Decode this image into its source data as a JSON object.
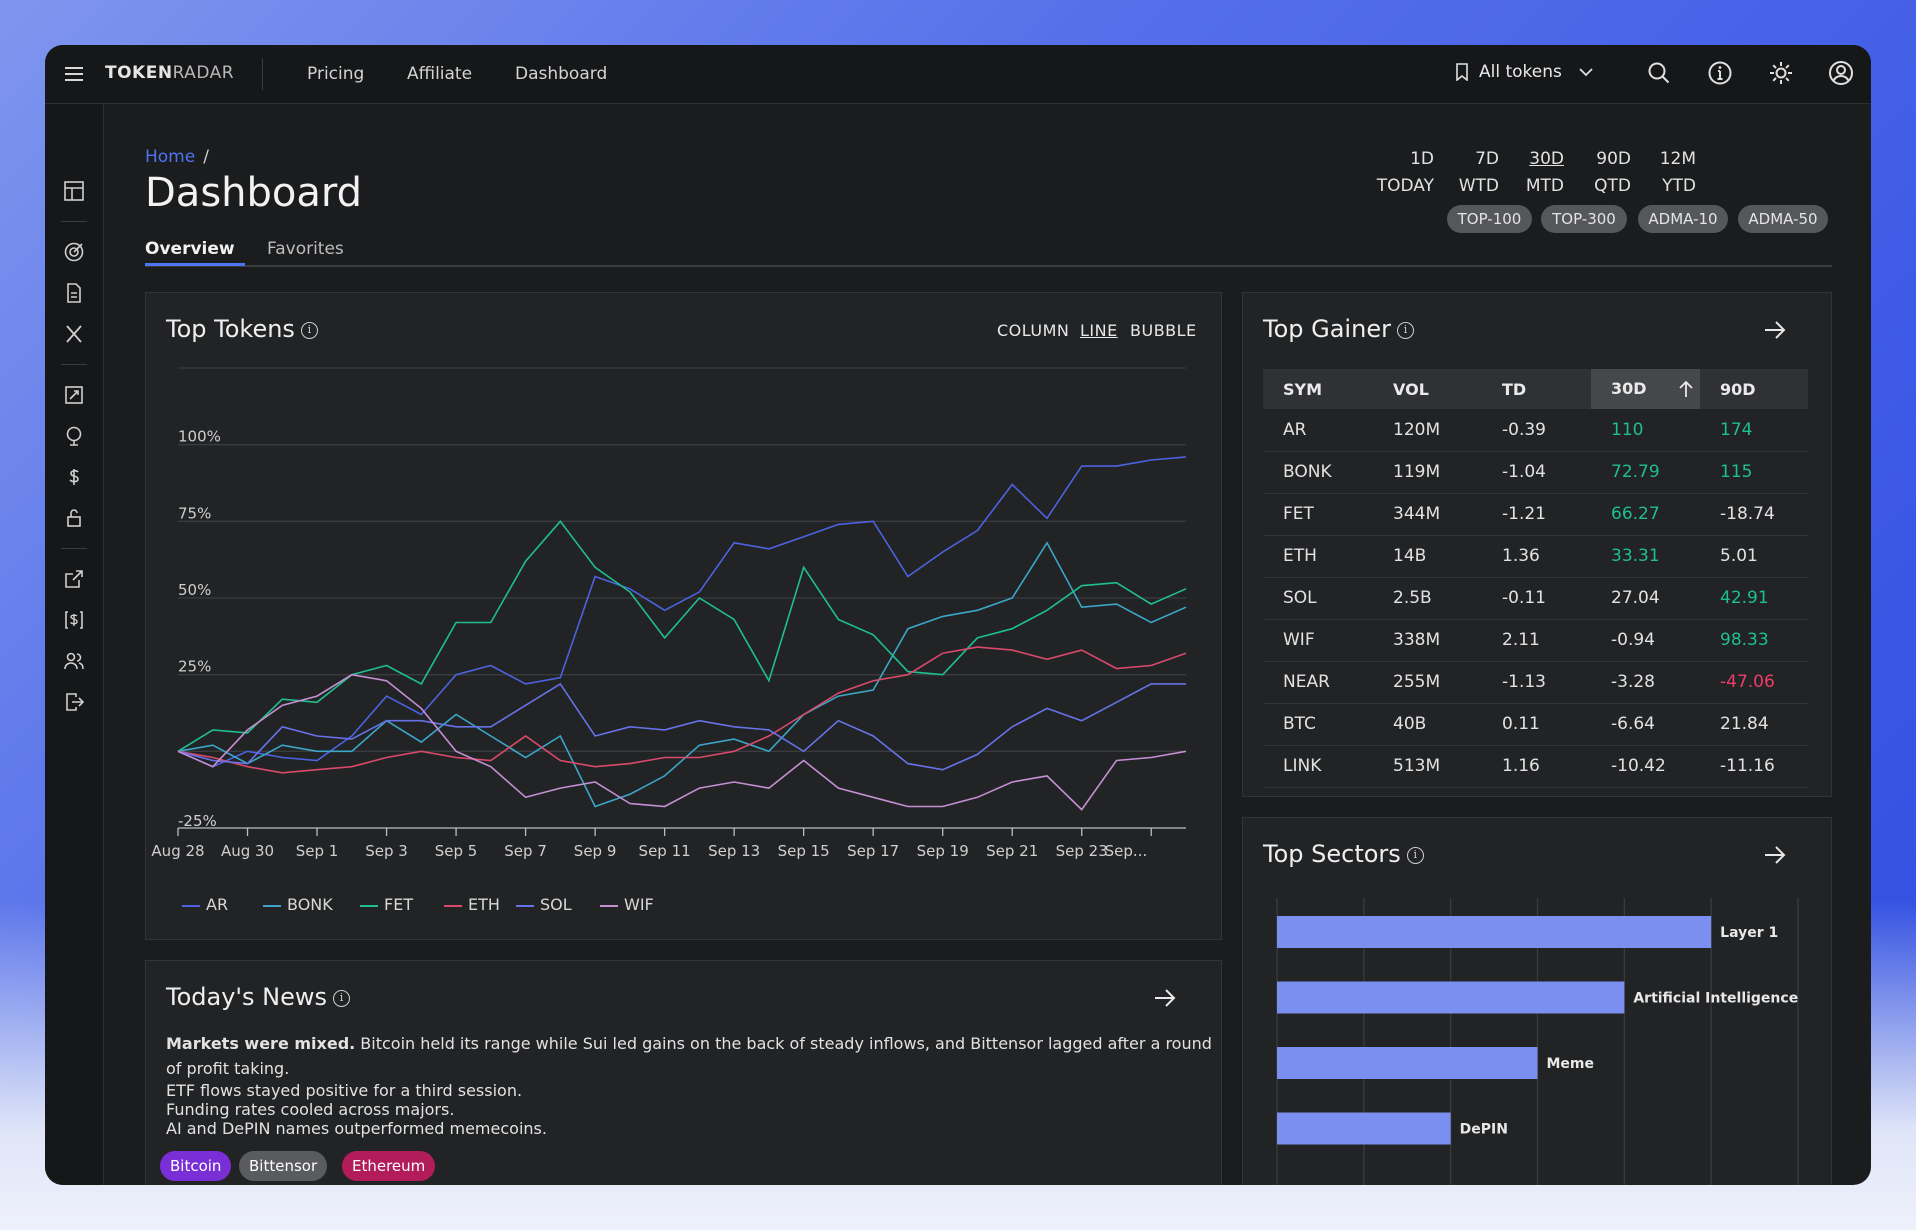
{
  "app": {
    "brand_bold": "TOKEN",
    "brand_light": "RADAR",
    "nav": [
      "Pricing",
      "Affiliate",
      "Dashboard"
    ],
    "token_selector": "All tokens"
  },
  "header": {
    "breadcrumb_home": "Home",
    "breadcrumb_sep": "/",
    "title": "Dashboard",
    "tabs": [
      "Overview",
      "Favorites"
    ],
    "periods": [
      {
        "top": "1D",
        "bottom": "TODAY"
      },
      {
        "top": "7D",
        "bottom": "WTD"
      },
      {
        "top": "30D",
        "bottom": "MTD"
      },
      {
        "top": "90D",
        "bottom": "QTD"
      },
      {
        "top": "12M",
        "bottom": "YTD"
      }
    ],
    "selected_period": "30D",
    "pills": [
      "TOP-100",
      "TOP-300",
      "ADMA-10",
      "ADMA-50"
    ]
  },
  "top_tokens": {
    "title": "Top Tokens",
    "modes": [
      "COLUMN",
      "LINE",
      "BUBBLE"
    ],
    "selected_mode": "LINE"
  },
  "chart_data": {
    "type": "line",
    "title": "Top Tokens",
    "x": [
      "Aug 28",
      "Aug 29",
      "Aug 30",
      "Aug 31",
      "Sep 1",
      "Sep 2",
      "Sep 3",
      "Sep 4",
      "Sep 5",
      "Sep 6",
      "Sep 7",
      "Sep 8",
      "Sep 9",
      "Sep 10",
      "Sep 11",
      "Sep 12",
      "Sep 13",
      "Sep 14",
      "Sep 15",
      "Sep 16",
      "Sep 17",
      "Sep 18",
      "Sep 19",
      "Sep 20",
      "Sep 21",
      "Sep 22",
      "Sep 23",
      "Sep 24",
      "Sep 25",
      "Sep 26"
    ],
    "x_tick_labels": [
      "Aug 28",
      "Aug 30",
      "Sep 1",
      "Sep 3",
      "Sep 5",
      "Sep 7",
      "Sep 9",
      "Sep 11",
      "Sep 13",
      "Sep 15",
      "Sep 17",
      "Sep 19",
      "Sep 21",
      "Sep 23",
      "Sep..."
    ],
    "y_tick_labels": [
      "100%",
      "75%",
      "50%",
      "25%",
      "-25%"
    ],
    "ylim": [
      -25,
      125
    ],
    "series": [
      {
        "name": "AR",
        "color": "#4b63e0",
        "values": [
          0,
          -5,
          0,
          -2,
          -3,
          5,
          18,
          12,
          25,
          28,
          22,
          24,
          57,
          53,
          46,
          52,
          68,
          66,
          70,
          74,
          75,
          57,
          65,
          72,
          87,
          76,
          93,
          93,
          95,
          96
        ]
      },
      {
        "name": "BONK",
        "color": "#3ba6c8",
        "values": [
          0,
          2,
          -4,
          2,
          0,
          0,
          10,
          3,
          12,
          5,
          -2,
          5,
          -18,
          -14,
          -8,
          2,
          4,
          0,
          12,
          18,
          20,
          40,
          44,
          46,
          50,
          68,
          47,
          48,
          42,
          47
        ]
      },
      {
        "name": "FET",
        "color": "#1fbf8f",
        "values": [
          0,
          7,
          6,
          17,
          16,
          25,
          28,
          22,
          42,
          42,
          62,
          75,
          60,
          52,
          37,
          50,
          43,
          23,
          60,
          43,
          38,
          26,
          25,
          37,
          40,
          46,
          54,
          55,
          48,
          53
        ]
      },
      {
        "name": "ETH",
        "color": "#d94a6a",
        "values": [
          0,
          -2,
          -5,
          -7,
          -6,
          -5,
          -2,
          0,
          -2,
          -3,
          5,
          -3,
          -5,
          -4,
          -2,
          -2,
          0,
          5,
          12,
          19,
          23,
          25,
          32,
          34,
          33,
          30,
          33,
          27,
          28,
          32
        ]
      },
      {
        "name": "SOL",
        "color": "#6672e8",
        "values": [
          0,
          -3,
          -4,
          8,
          5,
          4,
          10,
          10,
          8,
          8,
          15,
          22,
          5,
          8,
          7,
          10,
          8,
          7,
          0,
          10,
          5,
          -4,
          -6,
          -1,
          8,
          14,
          10,
          16,
          22,
          22
        ]
      },
      {
        "name": "WIF",
        "color": "#c48fd3",
        "values": [
          0,
          -5,
          7,
          15,
          18,
          25,
          23,
          14,
          0,
          -5,
          -15,
          -12,
          -10,
          -17,
          -18,
          -12,
          -10,
          -12,
          -3,
          -12,
          -15,
          -18,
          -18,
          -15,
          -10,
          -8,
          -19,
          -3,
          -2,
          0
        ]
      }
    ]
  },
  "top_gainer": {
    "title": "Top Gainer",
    "columns": [
      "SYM",
      "VOL",
      "TD",
      "30D",
      "90D"
    ],
    "sorted_column": "30D",
    "rows": [
      {
        "sym": "AR",
        "vol": "120M",
        "td": "-0.39",
        "d30": "110",
        "d90": "174",
        "c30": "pos",
        "c90": "pos"
      },
      {
        "sym": "BONK",
        "vol": "119M",
        "td": "-1.04",
        "d30": "72.79",
        "d90": "115",
        "c30": "pos",
        "c90": "pos"
      },
      {
        "sym": "FET",
        "vol": "344M",
        "td": "-1.21",
        "d30": "66.27",
        "d90": "-18.74",
        "c30": "pos",
        "c90": ""
      },
      {
        "sym": "ETH",
        "vol": "14B",
        "td": "1.36",
        "d30": "33.31",
        "d90": "5.01",
        "c30": "pos",
        "c90": ""
      },
      {
        "sym": "SOL",
        "vol": "2.5B",
        "td": "-0.11",
        "d30": "27.04",
        "d90": "42.91",
        "c30": "",
        "c90": "pos"
      },
      {
        "sym": "WIF",
        "vol": "338M",
        "td": "2.11",
        "d30": "-0.94",
        "d90": "98.33",
        "c30": "",
        "c90": "pos"
      },
      {
        "sym": "NEAR",
        "vol": "255M",
        "td": "-1.13",
        "d30": "-3.28",
        "d90": "-47.06",
        "c30": "",
        "c90": "neg"
      },
      {
        "sym": "BTC",
        "vol": "40B",
        "td": "0.11",
        "d30": "-6.64",
        "d90": "21.84",
        "c30": "",
        "c90": ""
      },
      {
        "sym": "LINK",
        "vol": "513M",
        "td": "1.16",
        "d30": "-10.42",
        "d90": "-11.16",
        "c30": "",
        "c90": ""
      }
    ]
  },
  "top_sectors": {
    "title": "Top Sectors",
    "chart_data": {
      "type": "bar",
      "orientation": "horizontal",
      "categories": [
        "Layer 1",
        "Artificial Intelligence",
        "Meme",
        "DePIN"
      ],
      "values": [
        100,
        80,
        60,
        40
      ],
      "xlim": [
        0,
        120
      ],
      "bar_color": "#7b8ff0"
    }
  },
  "news": {
    "title": "Today's News",
    "lead_bold": "Markets were mixed.",
    "lead_text": " Bitcoin held its range while Sui led gains on the back of steady inflows, and Bittensor lagged after a round of profit taking.",
    "lines": [
      "ETF flows stayed positive for a third session.",
      "Funding rates cooled across majors.",
      "AI and DePIN names outperformed memecoins."
    ],
    "tags": [
      {
        "label": "Bitcoin",
        "color": "#7a2fd6"
      },
      {
        "label": "Bittensor",
        "color": "#5a5b5f"
      },
      {
        "label": "Ethereum",
        "color": "#b21c5a"
      }
    ]
  }
}
